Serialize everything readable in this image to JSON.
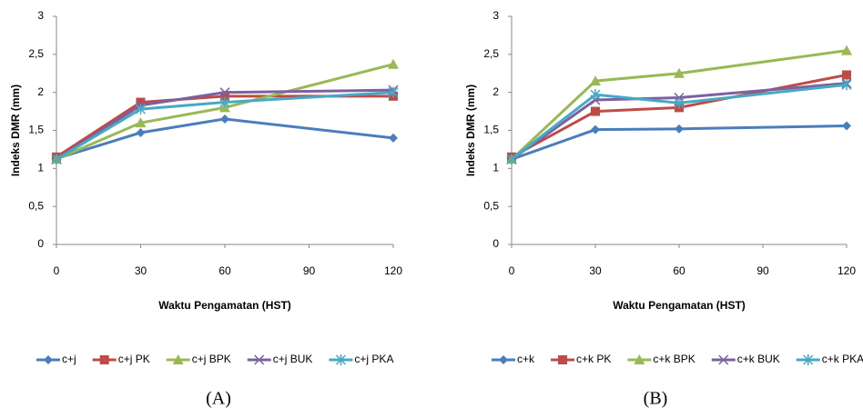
{
  "chart_data": [
    {
      "type": "line",
      "caption": "(A)",
      "x_label": "Waktu Pengamatan (HST)",
      "y_label": "Indeks DMR (mm)",
      "x": [
        0,
        30,
        60,
        120
      ],
      "xlim": [
        0,
        120
      ],
      "xticks": [
        0,
        30,
        60,
        90,
        120
      ],
      "ylim": [
        0,
        3
      ],
      "yticks": [
        0,
        {
          "value": 0.5,
          "label": "0,5"
        },
        1,
        {
          "value": 1.5,
          "label": "1,5"
        },
        2,
        {
          "value": 2.5,
          "label": "2,5"
        },
        3
      ],
      "legend": "bottom",
      "series": [
        {
          "name": "c+j",
          "color": "#4a7ebb",
          "marker": "diamond",
          "values": [
            1.13,
            1.47,
            1.65,
            1.4
          ]
        },
        {
          "name": "c+j PK",
          "color": "#be4b48",
          "marker": "square",
          "values": [
            1.15,
            1.87,
            1.95,
            1.95
          ]
        },
        {
          "name": "c+j BPK",
          "color": "#98b954",
          "marker": "triangle",
          "values": [
            1.12,
            1.6,
            1.8,
            2.37
          ]
        },
        {
          "name": "c+j BUK",
          "color": "#7d60a0",
          "marker": "x",
          "values": [
            1.12,
            1.83,
            2.0,
            2.03
          ]
        },
        {
          "name": "c+j PKA",
          "color": "#46aac5",
          "marker": "star",
          "values": [
            1.12,
            1.78,
            1.87,
            2.0
          ]
        }
      ]
    },
    {
      "type": "line",
      "caption": "(B)",
      "x_label": "Waktu Pengamatan (HST)",
      "y_label": "Indeks DMR (mm)",
      "x": [
        0,
        30,
        60,
        120
      ],
      "xlim": [
        0,
        120
      ],
      "xticks": [
        0,
        30,
        60,
        90,
        120
      ],
      "ylim": [
        0,
        3
      ],
      "yticks": [
        0,
        {
          "value": 0.5,
          "label": "0,5"
        },
        1,
        {
          "value": 1.5,
          "label": "1,5"
        },
        2,
        {
          "value": 2.5,
          "label": "2,5"
        },
        3
      ],
      "legend": "bottom",
      "series": [
        {
          "name": "c+k",
          "color": "#4a7ebb",
          "marker": "diamond",
          "values": [
            1.12,
            1.51,
            1.52,
            1.56
          ]
        },
        {
          "name": "c+k PK",
          "color": "#be4b48",
          "marker": "square",
          "values": [
            1.15,
            1.75,
            1.8,
            2.23
          ]
        },
        {
          "name": "c+k BPK",
          "color": "#98b954",
          "marker": "triangle",
          "values": [
            1.12,
            2.15,
            2.25,
            2.55
          ]
        },
        {
          "name": "c+k BUK",
          "color": "#7d60a0",
          "marker": "x",
          "values": [
            1.12,
            1.9,
            1.93,
            2.12
          ]
        },
        {
          "name": "c+k PKA",
          "color": "#46aac5",
          "marker": "star",
          "values": [
            1.12,
            1.97,
            1.86,
            2.1
          ]
        }
      ]
    }
  ]
}
